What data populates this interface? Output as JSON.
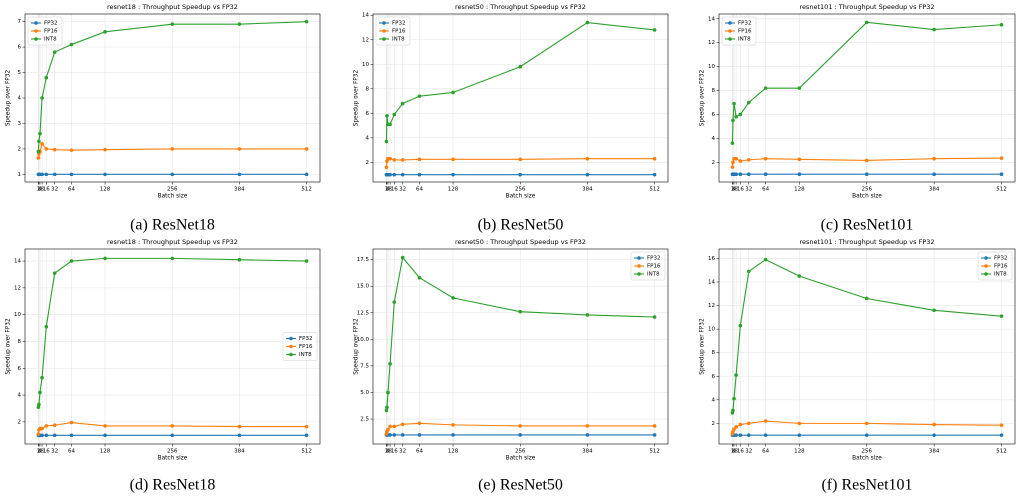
{
  "chart_data": [
    {
      "type": "line",
      "title": "resnet18 : Throughput Speedup vs FP32",
      "caption": "(a) ResNet18",
      "xlabel": "Batch size",
      "ylabel": "Speedup over FP32",
      "x": [
        1,
        2,
        4,
        8,
        16,
        32,
        64,
        128,
        256,
        384,
        512
      ],
      "xlim": [
        -24.55,
        537.55
      ],
      "xticks": [
        1,
        2,
        4,
        8,
        16,
        32,
        64,
        128,
        256,
        384,
        512
      ],
      "ylim": [
        0.7,
        7.3
      ],
      "yticks": [
        1,
        2,
        3,
        4,
        5,
        6,
        7
      ],
      "grid": true,
      "legend": "upper left",
      "series": [
        {
          "name": "FP32",
          "color": "#1f77b4",
          "values": [
            1,
            1,
            1,
            1,
            1,
            1,
            1,
            1,
            1,
            1,
            1
          ]
        },
        {
          "name": "FP16",
          "color": "#ff7f0e",
          "values": [
            1.65,
            1.8,
            1.9,
            2.2,
            2.0,
            1.97,
            1.95,
            1.97,
            2.0,
            2.0,
            2.0
          ]
        },
        {
          "name": "INT8",
          "color": "#2ca02c",
          "values": [
            1.9,
            2.3,
            2.6,
            4.0,
            4.8,
            5.8,
            6.1,
            6.6,
            6.9,
            6.9,
            7.0
          ]
        }
      ]
    },
    {
      "type": "line",
      "title": "resnet50 : Throughput Speedup vs FP32",
      "caption": "(b) ResNet50",
      "xlabel": "Batch size",
      "ylabel": "Speedup over FP32",
      "x": [
        1,
        2,
        4,
        8,
        16,
        32,
        64,
        128,
        256,
        384,
        512
      ],
      "xlim": [
        -24.55,
        537.55
      ],
      "xticks": [
        1,
        2,
        4,
        8,
        16,
        32,
        64,
        128,
        256,
        384,
        512
      ],
      "ylim": [
        0.4,
        14.1
      ],
      "yticks": [
        2,
        4,
        6,
        8,
        10,
        12,
        14
      ],
      "grid": true,
      "legend": "upper left",
      "series": [
        {
          "name": "FP32",
          "color": "#1f77b4",
          "values": [
            1,
            1,
            1,
            1,
            1,
            1,
            1,
            1,
            1,
            1,
            1
          ]
        },
        {
          "name": "FP16",
          "color": "#ff7f0e",
          "values": [
            1.6,
            2.1,
            2.3,
            2.3,
            2.2,
            2.2,
            2.25,
            2.25,
            2.25,
            2.3,
            2.3
          ]
        },
        {
          "name": "INT8",
          "color": "#2ca02c",
          "values": [
            3.7,
            5.8,
            5.1,
            5.1,
            5.9,
            6.8,
            7.4,
            7.7,
            9.8,
            13.4,
            12.8
          ]
        }
      ]
    },
    {
      "type": "line",
      "title": "resnet101 : Throughput Speedup vs FP32",
      "caption": "(c) ResNet101",
      "xlabel": "Batch size",
      "ylabel": "Speedup over FP32",
      "x": [
        1,
        2,
        4,
        8,
        16,
        32,
        64,
        128,
        256,
        384,
        512
      ],
      "xlim": [
        -24.55,
        537.55
      ],
      "xticks": [
        1,
        2,
        4,
        8,
        16,
        32,
        64,
        128,
        256,
        384,
        512
      ],
      "ylim": [
        0.35,
        14.4
      ],
      "yticks": [
        2,
        4,
        6,
        8,
        10,
        12,
        14
      ],
      "grid": true,
      "legend": "upper left",
      "series": [
        {
          "name": "FP32",
          "color": "#1f77b4",
          "values": [
            1,
            1,
            1,
            1,
            1,
            1,
            1,
            1,
            1,
            1,
            1
          ]
        },
        {
          "name": "FP16",
          "color": "#ff7f0e",
          "values": [
            1.6,
            2.0,
            2.3,
            2.3,
            2.1,
            2.2,
            2.3,
            2.25,
            2.15,
            2.3,
            2.35
          ]
        },
        {
          "name": "INT8",
          "color": "#2ca02c",
          "values": [
            3.6,
            5.5,
            6.9,
            5.8,
            6.0,
            7.0,
            8.2,
            8.2,
            13.7,
            13.1,
            13.5
          ]
        }
      ]
    },
    {
      "type": "line",
      "title": "resnet18 : Throughput Speedup vs FP32",
      "caption": "(d) ResNet18",
      "xlabel": "Batch size",
      "ylabel": "Speedup over FP32",
      "x": [
        1,
        2,
        4,
        8,
        16,
        32,
        64,
        128,
        256,
        384,
        512
      ],
      "xlim": [
        -24.55,
        537.55
      ],
      "xticks": [
        1,
        2,
        4,
        8,
        16,
        32,
        64,
        128,
        256,
        384,
        512
      ],
      "ylim": [
        0.35,
        14.9
      ],
      "yticks": [
        2,
        4,
        6,
        8,
        10,
        12,
        14
      ],
      "grid": true,
      "legend": "center right",
      "series": [
        {
          "name": "FP32",
          "color": "#1f77b4",
          "values": [
            1,
            1,
            1,
            1,
            1,
            1,
            1,
            1,
            1,
            1,
            1
          ]
        },
        {
          "name": "FP16",
          "color": "#ff7f0e",
          "values": [
            1.1,
            1.4,
            1.5,
            1.5,
            1.7,
            1.75,
            1.95,
            1.7,
            1.7,
            1.65,
            1.65
          ]
        },
        {
          "name": "INT8",
          "color": "#2ca02c",
          "values": [
            3.1,
            3.3,
            4.2,
            5.3,
            9.1,
            13.1,
            14.0,
            14.2,
            14.2,
            14.1,
            14.0
          ]
        }
      ]
    },
    {
      "type": "line",
      "title": "resnet50 : Throughput Speedup vs FP32",
      "caption": "(e) ResNet50",
      "xlabel": "Batch size",
      "ylabel": "Speedup over FP32",
      "x": [
        1,
        2,
        4,
        8,
        16,
        32,
        64,
        128,
        256,
        384,
        512
      ],
      "xlim": [
        -24.55,
        537.55
      ],
      "xticks": [
        1,
        2,
        4,
        8,
        16,
        32,
        64,
        128,
        256,
        384,
        512
      ],
      "ylim": [
        0.15,
        18.5
      ],
      "yticks": [
        2.5,
        {
          "value": 5,
          "label": "5.0"
        },
        7.5,
        {
          "value": 10,
          "label": "10.0"
        },
        12.5,
        {
          "value": 15,
          "label": "15.0"
        },
        17.5
      ],
      "grid": true,
      "legend": "upper right",
      "series": [
        {
          "name": "FP32",
          "color": "#1f77b4",
          "values": [
            1,
            1,
            1,
            1,
            1,
            1,
            1,
            1,
            1,
            1,
            1
          ]
        },
        {
          "name": "FP16",
          "color": "#ff7f0e",
          "values": [
            1.1,
            1.3,
            1.5,
            1.8,
            1.8,
            2.0,
            2.1,
            1.95,
            1.85,
            1.85,
            1.85
          ]
        },
        {
          "name": "INT8",
          "color": "#2ca02c",
          "values": [
            3.3,
            3.6,
            5.0,
            7.7,
            13.5,
            17.7,
            15.8,
            13.9,
            12.6,
            12.3,
            12.1
          ]
        }
      ]
    },
    {
      "type": "line",
      "title": "resnet101 : Throughput Speedup vs FP32",
      "caption": "(f) ResNet101",
      "xlabel": "Batch size",
      "ylabel": "Speedup over FP32",
      "x": [
        1,
        2,
        4,
        8,
        16,
        32,
        64,
        128,
        256,
        384,
        512
      ],
      "xlim": [
        -24.55,
        537.55
      ],
      "xticks": [
        1,
        2,
        4,
        8,
        16,
        32,
        64,
        128,
        256,
        384,
        512
      ],
      "ylim": [
        0.25,
        16.8
      ],
      "yticks": [
        2,
        4,
        6,
        8,
        10,
        12,
        14,
        16
      ],
      "grid": true,
      "legend": "upper right",
      "series": [
        {
          "name": "FP32",
          "color": "#1f77b4",
          "values": [
            1,
            1,
            1,
            1,
            1,
            1,
            1,
            1,
            1,
            1,
            1
          ]
        },
        {
          "name": "FP16",
          "color": "#ff7f0e",
          "values": [
            1.1,
            1.3,
            1.5,
            1.7,
            1.9,
            2.0,
            2.2,
            2.0,
            2.0,
            1.9,
            1.85
          ]
        },
        {
          "name": "INT8",
          "color": "#2ca02c",
          "values": [
            2.9,
            3.1,
            4.1,
            6.1,
            10.3,
            14.9,
            15.9,
            14.5,
            12.6,
            11.6,
            11.1
          ]
        }
      ]
    }
  ]
}
